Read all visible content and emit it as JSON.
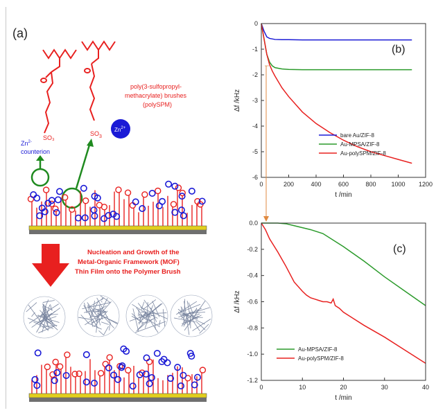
{
  "schematic": {
    "panel_label": "(a)",
    "brush_label_lines": [
      "poly(3-sulfopropyl-",
      "methacrylate) brushes",
      "(polySPM)"
    ],
    "zn_label": "Zn",
    "zn_label_sup": "2+",
    "counterion_label_line1": "Zn",
    "counterion_label_sup": "2-",
    "counterion_label_line2": "counterion",
    "growth_text_lines": [
      "Nucleation and Growth of the",
      "Metal-Organic Framework (MOF)",
      "Thin Film onto the Polymer Brush"
    ],
    "so3_label": "SO",
    "so3_sub": "3",
    "colors": {
      "brush": "#e8201f",
      "zinc": "#1a1ad6",
      "accent_green": "#1f8a1f",
      "substrate_gold": "#e2cf1e",
      "substrate_gray": "#6f6f6f",
      "arrow_red": "#e8201f"
    }
  },
  "chart_data": [
    {
      "type": "line",
      "panel_label": "(b)",
      "xlabel": "t /min",
      "ylabel": "Δf /kHz",
      "xlim": [
        0,
        1200
      ],
      "ylim": [
        -6,
        0
      ],
      "xticks": [
        0,
        200,
        400,
        600,
        800,
        1000,
        1200
      ],
      "yticks": [
        0,
        -1,
        -2,
        -3,
        -4,
        -5,
        -6
      ],
      "legend_position": "right",
      "series": [
        {
          "name": "bare Au/ZIF-8",
          "color": "#1a1ad6",
          "x": [
            0,
            20,
            40,
            60,
            80,
            100,
            150,
            200,
            300,
            400,
            600,
            800,
            1000,
            1100
          ],
          "y": [
            0,
            -0.3,
            -0.52,
            -0.58,
            -0.6,
            -0.62,
            -0.63,
            -0.63,
            -0.64,
            -0.64,
            -0.64,
            -0.64,
            -0.64,
            -0.64
          ]
        },
        {
          "name": "Au-MPSA/ZIF-8",
          "color": "#2a9a2a",
          "x": [
            0,
            20,
            40,
            60,
            80,
            100,
            150,
            200,
            300,
            400,
            600,
            800,
            1000,
            1100
          ],
          "y": [
            0,
            -0.6,
            -1.2,
            -1.5,
            -1.65,
            -1.72,
            -1.77,
            -1.79,
            -1.8,
            -1.8,
            -1.8,
            -1.8,
            -1.8,
            -1.8
          ]
        },
        {
          "name": "Au-polySPM/ZIF-8",
          "color": "#e8201f",
          "x": [
            0,
            20,
            40,
            60,
            80,
            100,
            150,
            200,
            300,
            400,
            500,
            600,
            700,
            800,
            900,
            1000,
            1100
          ],
          "y": [
            0,
            -0.6,
            -1.2,
            -1.6,
            -1.85,
            -2.05,
            -2.5,
            -2.85,
            -3.45,
            -3.9,
            -4.25,
            -4.55,
            -4.8,
            -5.0,
            -5.15,
            -5.3,
            -5.45
          ]
        }
      ]
    },
    {
      "type": "line",
      "panel_label": "(c)",
      "xlabel": "t /min",
      "ylabel": "Δf /kHz",
      "xlim": [
        0,
        40
      ],
      "ylim": [
        -1.2,
        0
      ],
      "xticks": [
        0,
        10,
        20,
        30,
        40
      ],
      "yticks": [
        "0.0",
        "-0.2",
        "-0.4",
        "-0.6",
        "-0.8",
        "-1.0",
        "-1.2"
      ],
      "legend_position": "bottom-left",
      "series": [
        {
          "name": "Au-MPSA/ZIF-8",
          "color": "#2a9a2a",
          "x": [
            0,
            4,
            6,
            8,
            10,
            12,
            15,
            20,
            25,
            30,
            35,
            40
          ],
          "y": [
            0,
            0,
            -0.005,
            -0.02,
            -0.035,
            -0.05,
            -0.08,
            -0.18,
            -0.29,
            -0.41,
            -0.52,
            -0.63
          ]
        },
        {
          "name": "Au-polySPM/ZIF-8",
          "color": "#e8201f",
          "x": [
            0,
            1,
            2,
            4,
            6,
            8,
            10,
            11,
            12,
            13,
            14,
            15,
            16,
            17,
            17.5,
            18,
            19,
            20,
            25,
            30,
            35,
            40
          ],
          "y": [
            0,
            -0.05,
            -0.12,
            -0.22,
            -0.33,
            -0.45,
            -0.52,
            -0.55,
            -0.57,
            -0.58,
            -0.59,
            -0.6,
            -0.6,
            -0.61,
            -0.58,
            -0.63,
            -0.65,
            -0.68,
            -0.78,
            -0.87,
            -0.97,
            -1.07
          ]
        }
      ]
    }
  ]
}
